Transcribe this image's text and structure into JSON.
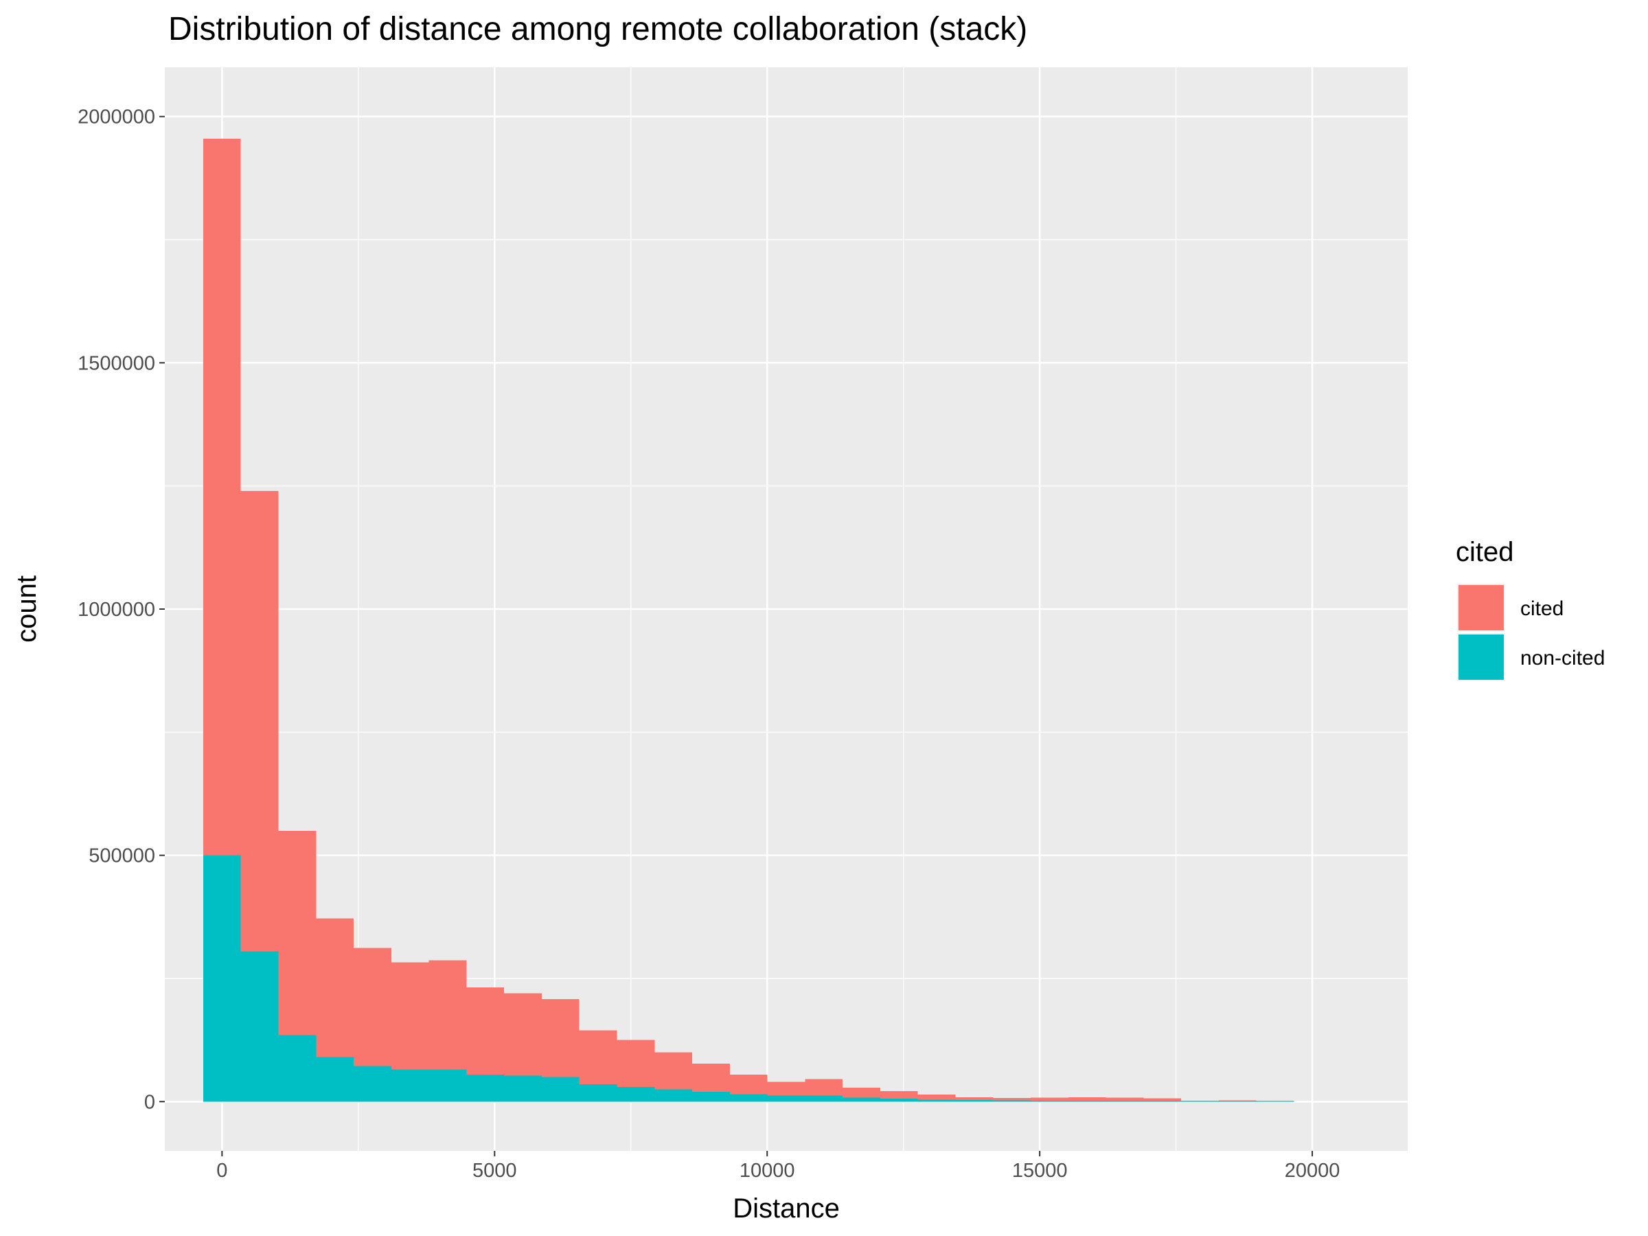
{
  "chart_data": {
    "type": "bar",
    "stacked": true,
    "title": "Distribution of distance among remote collaboration (stack)",
    "xlabel": "Distance",
    "ylabel": "count",
    "xlim": [
      -1050,
      21750
    ],
    "ylim": [
      -100000,
      2100000
    ],
    "x_ticks": [
      0,
      5000,
      10000,
      15000,
      20000
    ],
    "y_ticks": [
      0,
      500000,
      1000000,
      1500000,
      2000000
    ],
    "x_tick_labels": [
      "0",
      "5000",
      "10000",
      "15000",
      "20000"
    ],
    "y_tick_labels": [
      "0",
      "500000",
      "1000000",
      "1500000",
      "2000000"
    ],
    "grid": true,
    "bin_width": 690,
    "x": [
      0,
      690,
      1380,
      2070,
      2760,
      3450,
      4140,
      4830,
      5520,
      6210,
      6900,
      7590,
      8280,
      8970,
      9660,
      10350,
      11040,
      11730,
      12420,
      13110,
      13800,
      14490,
      15180,
      15870,
      16560,
      17250,
      17940,
      18630,
      19320
    ],
    "legend": {
      "title": "cited",
      "position": "right"
    },
    "series": [
      {
        "name": "non-cited",
        "color": "#00BFC4",
        "values": [
          500000,
          305000,
          135000,
          90000,
          72000,
          65000,
          65000,
          55000,
          53000,
          50000,
          35000,
          30000,
          25000,
          20000,
          15000,
          12000,
          12000,
          8000,
          6000,
          4000,
          3000,
          2500,
          2000,
          2000,
          2000,
          1500,
          1000,
          2000,
          500
        ]
      },
      {
        "name": "cited",
        "color": "#F8766D",
        "values": [
          1455000,
          935000,
          415000,
          282000,
          240000,
          218000,
          222000,
          177000,
          167000,
          158000,
          110000,
          95000,
          75000,
          57000,
          40000,
          28000,
          34000,
          20000,
          15000,
          10000,
          6000,
          5000,
          6000,
          7000,
          6000,
          5500,
          1000,
          500,
          1500
        ]
      }
    ]
  }
}
